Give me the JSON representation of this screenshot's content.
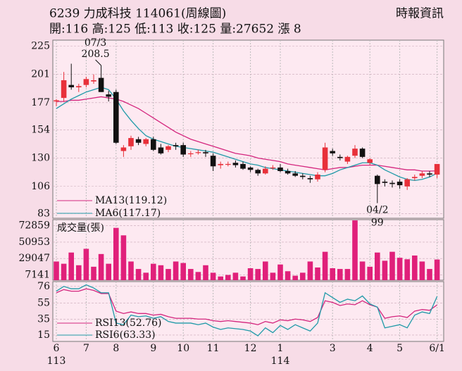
{
  "header": {
    "title": "6239 力成科技 114061(周線圖)",
    "source": "時報資訊",
    "quote": "開:116 高:125 低:113 收:125 量:27652 漲 8"
  },
  "chart_data": [
    {
      "type": "candlestick",
      "categories": [
        "6",
        null,
        null,
        null,
        "7",
        null,
        null,
        null,
        "8",
        null,
        null,
        null,
        null,
        "9",
        null,
        null,
        null,
        "10",
        null,
        null,
        null,
        "11",
        null,
        null,
        null,
        null,
        "12",
        null,
        null,
        null,
        "1",
        null,
        null,
        null,
        null,
        null,
        null,
        "3",
        null,
        null,
        null,
        null,
        "4",
        null,
        null,
        null,
        "5",
        null,
        null,
        null,
        null,
        "6/1"
      ],
      "year_labels": [
        "113",
        null,
        null,
        null,
        null,
        null,
        null,
        null,
        null,
        null,
        null,
        null,
        null,
        null,
        null,
        null,
        null,
        null,
        null,
        null,
        null,
        null,
        null,
        null,
        null,
        null,
        null,
        null,
        null,
        null,
        "114",
        null,
        null,
        null,
        null,
        null,
        null,
        null,
        null,
        null,
        null,
        null,
        null,
        null,
        null,
        null,
        null,
        null,
        null,
        null,
        null,
        null
      ],
      "open": [
        178,
        181,
        192,
        190,
        192,
        195,
        198,
        184,
        186,
        136,
        140,
        146,
        142,
        146,
        139,
        137,
        141,
        141,
        134,
        135,
        135,
        132,
        124,
        125,
        126,
        125,
        122,
        120,
        117,
        122,
        122,
        119,
        117,
        115,
        113,
        112,
        120,
        136,
        131,
        127,
        132,
        138,
        126,
        115,
        110,
        109,
        110,
        106,
        113,
        115,
        117,
        116
      ],
      "high": [
        180,
        203,
        210,
        193,
        199,
        201,
        208.5,
        187,
        188,
        141,
        149,
        148,
        147,
        148,
        142,
        141,
        143,
        143,
        136,
        137,
        137,
        134,
        127,
        127,
        128,
        127,
        123,
        121,
        123,
        124,
        125,
        121,
        119,
        117,
        115,
        118,
        143,
        138,
        133,
        132,
        141,
        139,
        130,
        116,
        112,
        111,
        112,
        113,
        116,
        119,
        119,
        125
      ],
      "low": [
        174,
        178,
        188,
        186,
        190,
        193,
        186,
        178,
        142,
        131,
        137,
        141,
        140,
        136,
        133,
        135,
        137,
        131,
        131,
        133,
        131,
        119,
        121,
        123,
        122,
        120,
        118,
        115,
        116,
        120,
        118,
        116,
        114,
        112,
        109,
        110,
        118,
        132,
        128,
        125,
        130,
        130,
        124,
        99,
        106,
        105,
        104,
        103,
        111,
        113,
        114,
        113
      ],
      "close": [
        179,
        196,
        190,
        191,
        197,
        196,
        186,
        182,
        143,
        139,
        147,
        143,
        146,
        137,
        134,
        140,
        140,
        133,
        134,
        135,
        134,
        123,
        125,
        125,
        124,
        121,
        120,
        117,
        121,
        122,
        119,
        117,
        115,
        114,
        112,
        116,
        139,
        134,
        130,
        131,
        138,
        131,
        129,
        108,
        109,
        108,
        107,
        112,
        114,
        117,
        116,
        125
      ],
      "up_color": "#e8303a",
      "down_color": "#111111",
      "series": [
        {
          "name": "MA13(119.12)",
          "color": "#d4267e",
          "values": [
            178,
            178,
            179,
            179,
            180,
            181,
            182,
            181,
            180,
            178,
            175,
            172,
            168,
            164,
            160,
            156,
            152,
            149,
            146,
            144,
            142,
            140,
            138,
            136,
            134,
            133,
            132,
            130,
            129,
            128,
            127,
            125,
            124,
            123,
            122,
            121,
            120,
            121,
            122,
            122,
            123,
            124,
            124,
            124,
            123,
            122,
            121,
            120,
            120,
            119,
            119,
            119.12
          ]
        },
        {
          "name": "MA6(117.17)",
          "color": "#1e9aa8",
          "values": [
            172,
            176,
            180,
            183,
            186,
            188,
            190,
            188,
            180,
            170,
            162,
            155,
            149,
            146,
            144,
            142,
            140,
            139,
            138,
            137,
            136,
            135,
            133,
            131,
            129,
            127,
            125,
            124,
            122,
            121,
            120,
            119,
            118,
            117,
            116,
            115,
            115,
            117,
            120,
            122,
            124,
            126,
            126,
            124,
            120,
            117,
            114,
            112,
            111,
            112,
            114,
            117.17
          ]
        }
      ],
      "annotations": [
        {
          "label": "07/3",
          "value": 208.5
        },
        {
          "label": "04/2",
          "value": 99
        }
      ],
      "ylim": [
        79,
        230
      ],
      "yticks": [
        83,
        106,
        130,
        154,
        177,
        201,
        225
      ],
      "grid": true
    },
    {
      "type": "bar",
      "title": "成交量(張)",
      "color": "#e0207a",
      "values": [
        25000,
        22000,
        37000,
        20000,
        42000,
        18000,
        35000,
        22000,
        70000,
        60000,
        25000,
        15000,
        10000,
        22000,
        20000,
        15000,
        25000,
        23000,
        15000,
        11000,
        20000,
        10000,
        5000,
        7000,
        10000,
        5000,
        16000,
        15000,
        25000,
        10000,
        21000,
        12000,
        6000,
        10000,
        25000,
        17000,
        38000,
        16000,
        15000,
        15000,
        80000,
        25000,
        18000,
        37000,
        26000,
        38000,
        30000,
        28000,
        33000,
        25000,
        15000,
        27652
      ],
      "ylim": [
        0,
        81000
      ],
      "yticks": [
        7141,
        29047,
        50953,
        72859
      ],
      "grid": true
    },
    {
      "type": "line",
      "series": [
        {
          "name": "RSI13(52.76)",
          "color": "#d4267e",
          "values": [
            68,
            72,
            70,
            70,
            73,
            71,
            67,
            67,
            45,
            42,
            44,
            42,
            42,
            40,
            41,
            38,
            36,
            36,
            36,
            35,
            35,
            33,
            32,
            33,
            32,
            31,
            30,
            28,
            32,
            30,
            34,
            33,
            35,
            34,
            32,
            37,
            58,
            56,
            52,
            54,
            53,
            58,
            53,
            50,
            36,
            38,
            39,
            37,
            45,
            47,
            46,
            52.76
          ]
        },
        {
          "name": "RSI6(63.33)",
          "color": "#1e9aa8",
          "values": [
            70,
            76,
            73,
            73,
            78,
            74,
            68,
            68,
            30,
            28,
            40,
            38,
            39,
            36,
            38,
            32,
            30,
            30,
            30,
            28,
            30,
            25,
            22,
            24,
            23,
            22,
            20,
            14,
            24,
            18,
            27,
            22,
            28,
            24,
            20,
            30,
            68,
            62,
            56,
            60,
            58,
            64,
            54,
            50,
            24,
            26,
            28,
            24,
            40,
            44,
            42,
            63.33
          ]
        }
      ],
      "ylim": [
        7,
        82
      ],
      "yticks": [
        15,
        35,
        55,
        76
      ],
      "grid": true
    }
  ]
}
